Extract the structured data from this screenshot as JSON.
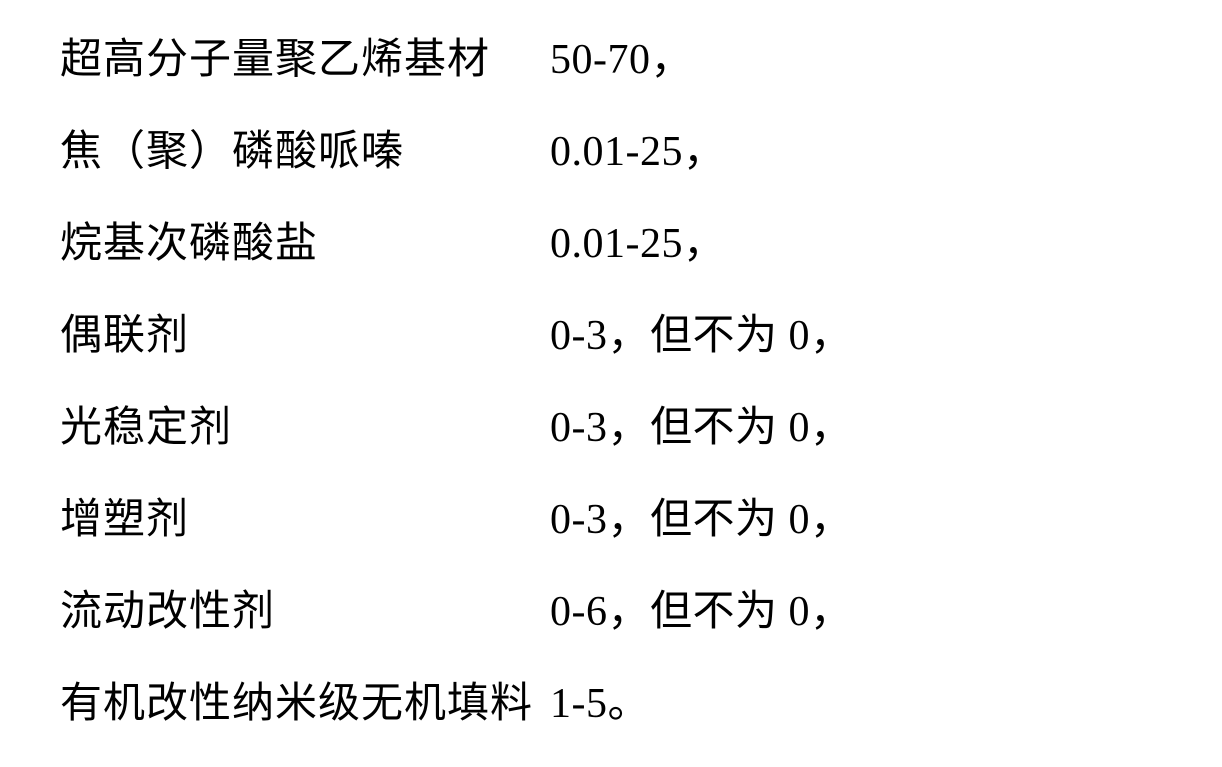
{
  "text_color": "#000000",
  "background_color": "#ffffff",
  "font_size": 42,
  "rows": [
    {
      "label": "超高分子量聚乙烯基材",
      "value": "50-70，"
    },
    {
      "label": "焦（聚）磷酸哌嗪",
      "value": "0.01-25，"
    },
    {
      "label": "烷基次磷酸盐",
      "value": "0.01-25，"
    },
    {
      "label": "偶联剂",
      "value": "0-3，但不为 0，"
    },
    {
      "label": "光稳定剂",
      "value": "0-3，但不为 0，"
    },
    {
      "label": "增塑剂",
      "value": "0-3，但不为 0，"
    },
    {
      "label": "流动改性剂",
      "value": "0-6，但不为 0，"
    },
    {
      "label": "有机改性纳米级无机填料",
      "value": "1-5。"
    }
  ]
}
